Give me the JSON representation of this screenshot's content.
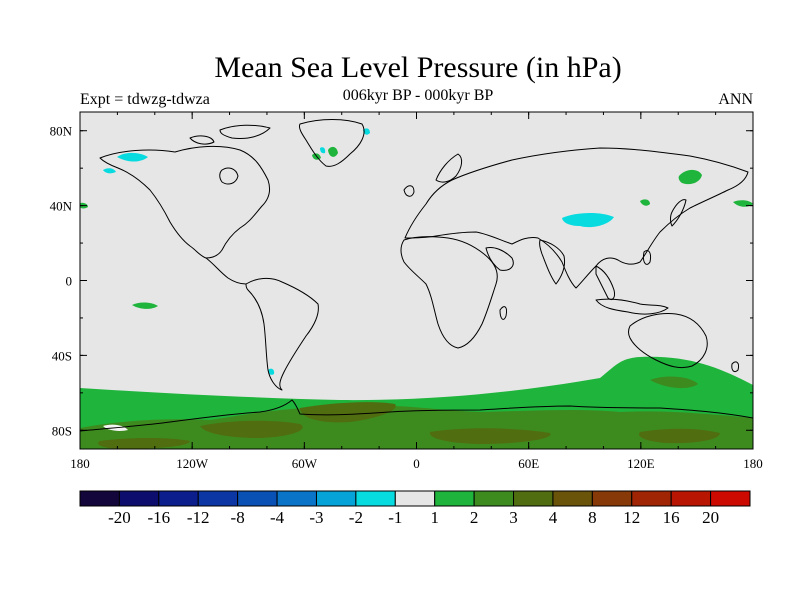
{
  "title": "Mean Sea Level Pressure (in hPa)",
  "subtitle_left": "Expt = tdwzg-tdwza",
  "subtitle_center": "006kyr BP - 000kyr BP",
  "subtitle_right": "ANN",
  "x_tick_labels": [
    "180",
    "120W",
    "60W",
    "0",
    "60E",
    "120E",
    "180"
  ],
  "y_tick_labels": [
    "80N",
    "40N",
    "0",
    "40S",
    "80S"
  ],
  "colorbar": {
    "colors": [
      "#13063a",
      "#0d0d6e",
      "#0c1d8c",
      "#0b36a3",
      "#0a51b6",
      "#0a74c9",
      "#06a3d8",
      "#08dbe0",
      "#e6e6e6",
      "#1fb43c",
      "#3d8b1f",
      "#506d0f",
      "#6a540a",
      "#873a07",
      "#a02505",
      "#b81603",
      "#cc0a02"
    ],
    "labels": [
      "-20",
      "-16",
      "-12",
      "-8",
      "-4",
      "-3",
      "-2",
      "-1",
      "1",
      "2",
      "3",
      "4",
      "8",
      "12",
      "16",
      "20"
    ]
  },
  "colors": {
    "background": "#e6e6e6",
    "light_green": "#1fb43c",
    "mid_green": "#3d8b1f",
    "dark_green": "#506d0f",
    "cyan": "#08dbe0",
    "coast": "#000000"
  }
}
